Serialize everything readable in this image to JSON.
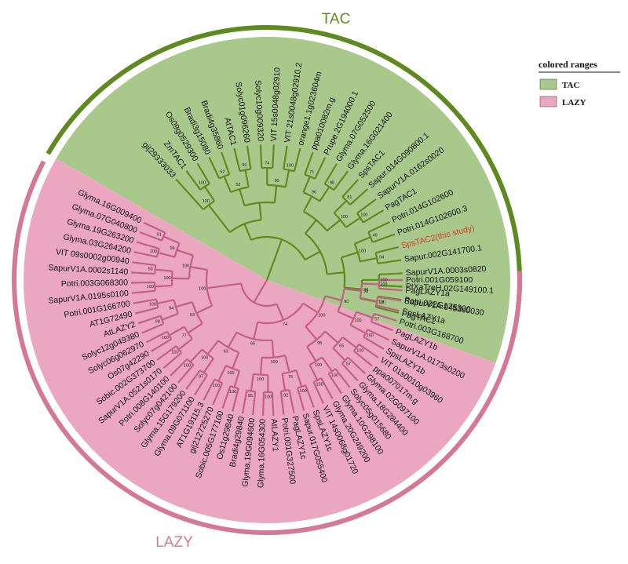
{
  "clades": {
    "tac": {
      "label": "TAC",
      "fill": "#a9c88b",
      "ring": "#5e8a1f",
      "branch": "#5e8a1f",
      "leaves": [
        "PagTAC2",
        "Potri.002G175300",
        "PtXaTreH.02G149100.1",
        "SapurV1A.0003s0820",
        "Sapur.002G141700.1",
        "SpsTAC2(this study)",
        "Potri.014G102600.3",
        "Potri.014G102600",
        "PagTAC1",
        "SapurV1A.0162s0020",
        "Sapur.014G090800.1",
        "SpsTAC1",
        "Glyma.16G021400",
        "Glyma.07G052500",
        "Prupe.2G194000.1",
        "ppa010082m.g",
        "orange1.1g023604m",
        "VIT 21s0048g02910.2",
        "VIT 15s0048g02910",
        "Solyc10g009320",
        "Solyc01g096260",
        "AtTAC1",
        "Bradi4g35860",
        "Bradi3g15080",
        "Os09g0529300",
        "ZmTAC1",
        "gi|29333033"
      ],
      "bootstrap": [
        "72",
        "100",
        "94",
        "49",
        "100",
        "81",
        "98",
        "71",
        "100",
        "74",
        "99",
        "62",
        "100",
        "96",
        "100",
        "100",
        "96",
        "99",
        "52",
        "100"
      ]
    },
    "lazy": {
      "label": "LAZY",
      "fill": "#eaa7bf",
      "ring": "#d57898",
      "branch": "#c25f88",
      "leaves": [
        "Potri.001G059100",
        "PagLAZY1a",
        "SapurV1A.0453s0030",
        "SpsLAZY1a",
        "Potri.003G168700",
        "PagLAZY1b",
        "SapurV1A.0173s0200",
        "SpsLAZY1b",
        "VIT 01s0010g03960",
        "ppa007017m.g",
        "Glyma.02G097100",
        "Glyma.18G284400",
        "Solyc05g015680",
        "Glyma.10G298100",
        "Glyma.20G249200",
        "VIT 14s0068g01720",
        "SpsLAZY1c",
        "Sapur.017G055400",
        "PagLAZY1c",
        "Potri.001G327500",
        "AtLAZY1",
        "Glyma.16G054300",
        "Glyma.19G094600",
        "Bradi4g29840",
        "Os11g29840",
        "Sobic.005G177100",
        "gi|212725270",
        "AT1G19115.3",
        "Glyma.09G071100",
        "Glyma.15G179200",
        "Solyc07g042100",
        "Potri.008G140100",
        "SapurV1A.0521s0170",
        "Sobic.002G373700",
        "Os07g42290",
        "Solyc06g062970",
        "Solyc12g049380",
        "AtLAZY2",
        "AT1G72490",
        "Potri.001G166700",
        "SapurV1A.0195s0100",
        "Potri.003G068300",
        "SapurV1A.0002s1140",
        "VIT 09s0002g00940",
        "Glyma.03G264200",
        "Glyma.19G263200",
        "Glyma.07G040800",
        "Glyma.16G009400"
      ],
      "bootstrap": [
        "100",
        "100",
        "57",
        "100",
        "100",
        "57",
        "100",
        "100",
        "100",
        "92",
        "100",
        "95",
        "100",
        "100",
        "87",
        "100",
        "100",
        "100",
        "98",
        "100",
        "100",
        "93",
        "100",
        "91",
        "98",
        "100",
        "65",
        "100",
        "76",
        "100",
        "100",
        "100",
        "77",
        "94",
        "100",
        "99",
        "90",
        "95",
        "100",
        "93",
        "53",
        "100",
        "100",
        "65",
        "100",
        "74"
      ]
    }
  },
  "legend": {
    "title": "colored ranges",
    "items": [
      {
        "label": "TAC",
        "color": "#a9c88b"
      },
      {
        "label": "LAZY",
        "color": "#eaa7bf"
      }
    ]
  }
}
